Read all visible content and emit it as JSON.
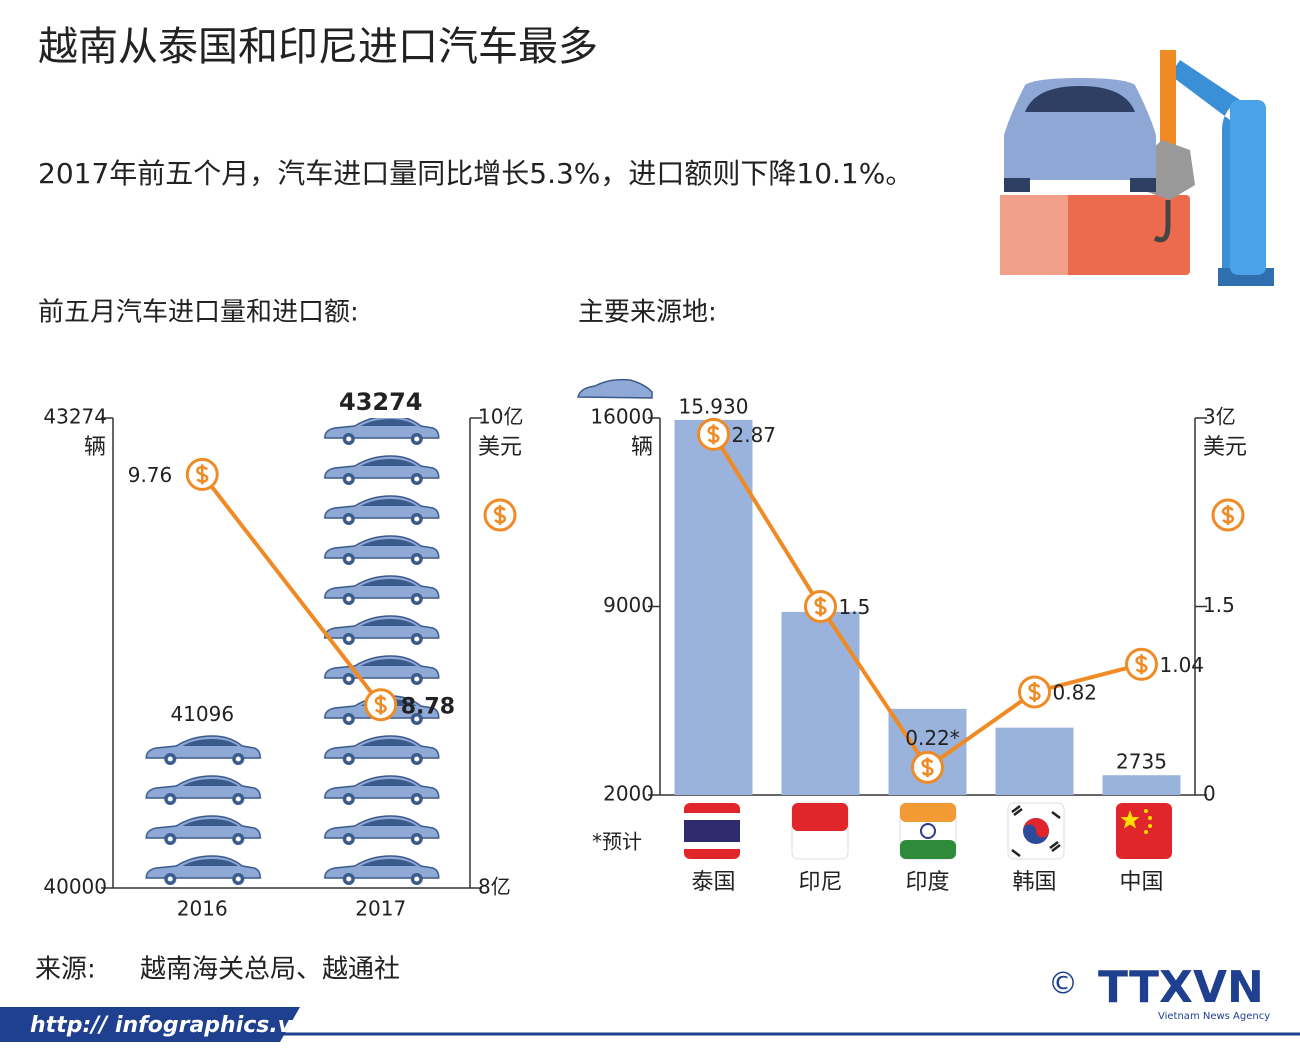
{
  "title": "越南从泰国和印尼进口汽车最多",
  "intro": "2017年前五个月，汽车进口量同比增长5.3%，进口额则下降10.1%。",
  "chart_data": [
    {
      "type": "combo",
      "title": "前五月汽车进口量和进口额:",
      "categories": [
        "2016",
        "2017"
      ],
      "ylim": [
        40000,
        43274
      ],
      "yticks": [
        40000,
        43274
      ],
      "ylabel": "辆",
      "y2lim": [
        8,
        10
      ],
      "y2ticks": [
        {
          "value": 8,
          "label": "8亿"
        },
        {
          "value": 10,
          "label": "10亿"
        }
      ],
      "y2label": "美元",
      "pictograph": true,
      "series": [
        {
          "type": "bar",
          "color": "#9ab3dc",
          "values": [
            41096,
            43274
          ]
        },
        {
          "type": "line",
          "axis": "y2",
          "color": "#f08a24",
          "values": [
            9.76,
            8.78
          ]
        }
      ]
    },
    {
      "type": "combo",
      "title": "主要来源地:",
      "categories": [
        "泰国",
        "印尼",
        "印度",
        "韩国",
        "中国"
      ],
      "ylim": [
        2000,
        16000
      ],
      "yticks": [
        2000,
        9000,
        16000
      ],
      "ylabel": "辆",
      "y2lim": [
        0,
        3
      ],
      "y2ticks": [
        0,
        1.5,
        {
          "value": 3,
          "label": "3亿"
        }
      ],
      "y2label": "美元",
      "note": "*预计",
      "series": [
        {
          "type": "bar",
          "color": "#9ab3dc",
          "values": [
            15930,
            8800,
            5200,
            4500,
            2735
          ],
          "value_labels": [
            "15.930",
            null,
            null,
            null,
            "2735"
          ]
        },
        {
          "type": "line",
          "axis": "y2",
          "color": "#f08a24",
          "values": [
            2.87,
            1.5,
            0.22,
            0.82,
            1.04
          ],
          "value_labels": [
            "2.87",
            "1.5",
            "0.22*",
            "0.82",
            "1.04"
          ]
        }
      ]
    }
  ],
  "footer": {
    "source_label": "来源:",
    "source": "越南海关总局、越通社",
    "url": "http:// infographics.vn",
    "copyright": "©",
    "logo": "TTXVN",
    "logo_sub": "Vietnam News Agency"
  }
}
